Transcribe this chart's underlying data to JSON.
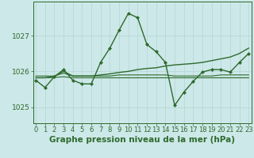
{
  "title": "Graphe pression niveau de la mer (hPa)",
  "hours": [
    0,
    1,
    2,
    3,
    4,
    5,
    6,
    7,
    8,
    9,
    10,
    11,
    12,
    13,
    14,
    15,
    16,
    17,
    18,
    19,
    20,
    21,
    22,
    23
  ],
  "series": [
    {
      "name": "main_wavy",
      "y": [
        1025.75,
        1025.55,
        1025.85,
        1026.05,
        1025.75,
        1025.65,
        1025.65,
        1026.25,
        1026.65,
        1027.15,
        1027.62,
        1027.5,
        1026.75,
        1026.55,
        1026.25,
        1025.05,
        1025.42,
        1025.72,
        1025.98,
        1026.05,
        1026.05,
        1025.98,
        1026.25,
        1026.5
      ],
      "color": "#2d6a2d",
      "lw": 1.0,
      "marker": "D",
      "ms": 2.2
    },
    {
      "name": "rising_line",
      "y": [
        1025.82,
        1025.82,
        1025.86,
        1026.0,
        1025.87,
        1025.87,
        1025.87,
        1025.9,
        1025.93,
        1025.97,
        1026.0,
        1026.05,
        1026.08,
        1026.1,
        1026.15,
        1026.18,
        1026.2,
        1026.22,
        1026.25,
        1026.3,
        1026.35,
        1026.4,
        1026.5,
        1026.65
      ],
      "color": "#2d6a2d",
      "lw": 1.0,
      "marker": null,
      "ms": 0
    },
    {
      "name": "flat_line1",
      "y": [
        1025.82,
        1025.82,
        1025.83,
        1025.85,
        1025.82,
        1025.82,
        1025.82,
        1025.82,
        1025.82,
        1025.82,
        1025.82,
        1025.82,
        1025.82,
        1025.82,
        1025.82,
        1025.82,
        1025.82,
        1025.82,
        1025.82,
        1025.82,
        1025.82,
        1025.82,
        1025.82,
        1025.82
      ],
      "color": "#2d6a2d",
      "lw": 0.8,
      "marker": null,
      "ms": 0
    },
    {
      "name": "flat_line2",
      "y": [
        1025.87,
        1025.87,
        1025.87,
        1025.95,
        1025.87,
        1025.87,
        1025.87,
        1025.87,
        1025.87,
        1025.9,
        1025.9,
        1025.9,
        1025.9,
        1025.9,
        1025.9,
        1025.87,
        1025.87,
        1025.87,
        1025.87,
        1025.87,
        1025.9,
        1025.9,
        1025.9,
        1025.9
      ],
      "color": "#2d6a2d",
      "lw": 0.8,
      "marker": null,
      "ms": 0
    }
  ],
  "ylim": [
    1024.55,
    1027.95
  ],
  "yticks": [
    1025,
    1026,
    1027
  ],
  "xlim": [
    -0.3,
    23.3
  ],
  "bg_color": "#cde8e8",
  "grid_color_major": "#b8d8d8",
  "grid_color_minor": "#cde0e0",
  "axis_color": "#2d6a2d",
  "label_color": "#2d6a2d",
  "title_color": "#2d6a2d",
  "title_fontsize": 7.5,
  "tick_fontsize": 6.0,
  "fig_w": 3.2,
  "fig_h": 2.0,
  "dpi": 100
}
